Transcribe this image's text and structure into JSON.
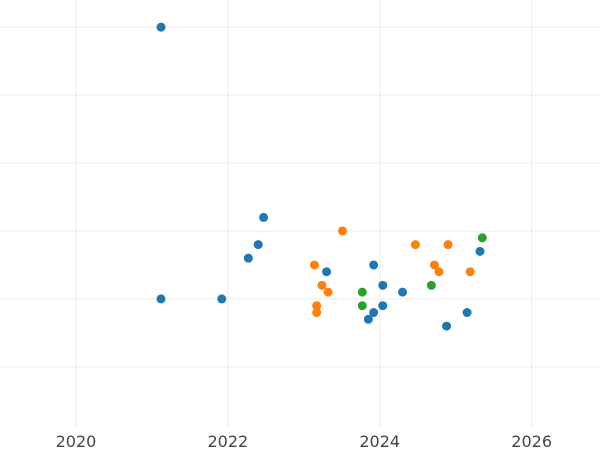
{
  "chart_data": {
    "type": "scatter",
    "title": "",
    "xlabel": "",
    "ylabel": "",
    "xlim": [
      2019.0,
      2026.9
    ],
    "ylim": [
      -0.9,
      5.4
    ],
    "x_ticks": [
      {
        "value": 2020,
        "label": "2020"
      },
      {
        "value": 2022,
        "label": "2022"
      },
      {
        "value": 2024,
        "label": "2024"
      },
      {
        "value": 2026,
        "label": "2026"
      }
    ],
    "y_gridlines": [
      0,
      1,
      2,
      3,
      4,
      5,
      6
    ],
    "grid": true,
    "legend": "none",
    "series": [
      {
        "color": "#1f77b4",
        "points": [
          {
            "x": 2021.12,
            "y": 5.0
          },
          {
            "x": 2021.12,
            "y": 1.0
          },
          {
            "x": 2021.92,
            "y": 1.0
          },
          {
            "x": 2022.27,
            "y": 1.6
          },
          {
            "x": 2022.4,
            "y": 1.8
          },
          {
            "x": 2022.47,
            "y": 2.2
          },
          {
            "x": 2023.3,
            "y": 1.4
          },
          {
            "x": 2023.85,
            "y": 0.7
          },
          {
            "x": 2023.92,
            "y": 0.8
          },
          {
            "x": 2023.92,
            "y": 1.5
          },
          {
            "x": 2024.04,
            "y": 0.9
          },
          {
            "x": 2024.04,
            "y": 1.2
          },
          {
            "x": 2024.3,
            "y": 1.1
          },
          {
            "x": 2024.88,
            "y": 0.6
          },
          {
            "x": 2025.15,
            "y": 0.8
          },
          {
            "x": 2025.32,
            "y": 1.7
          }
        ]
      },
      {
        "color": "#ff7f0e",
        "points": [
          {
            "x": 2023.14,
            "y": 1.5
          },
          {
            "x": 2023.17,
            "y": 0.9
          },
          {
            "x": 2023.17,
            "y": 0.8
          },
          {
            "x": 2023.24,
            "y": 1.2
          },
          {
            "x": 2023.32,
            "y": 1.1
          },
          {
            "x": 2023.51,
            "y": 2.0
          },
          {
            "x": 2024.47,
            "y": 1.8
          },
          {
            "x": 2024.72,
            "y": 1.5
          },
          {
            "x": 2024.78,
            "y": 1.4
          },
          {
            "x": 2024.9,
            "y": 1.8
          },
          {
            "x": 2025.19,
            "y": 1.4
          }
        ]
      },
      {
        "color": "#2ca02c",
        "points": [
          {
            "x": 2023.77,
            "y": 1.1
          },
          {
            "x": 2023.77,
            "y": 0.9
          },
          {
            "x": 2024.68,
            "y": 1.2
          },
          {
            "x": 2025.35,
            "y": 1.9
          }
        ]
      }
    ]
  }
}
